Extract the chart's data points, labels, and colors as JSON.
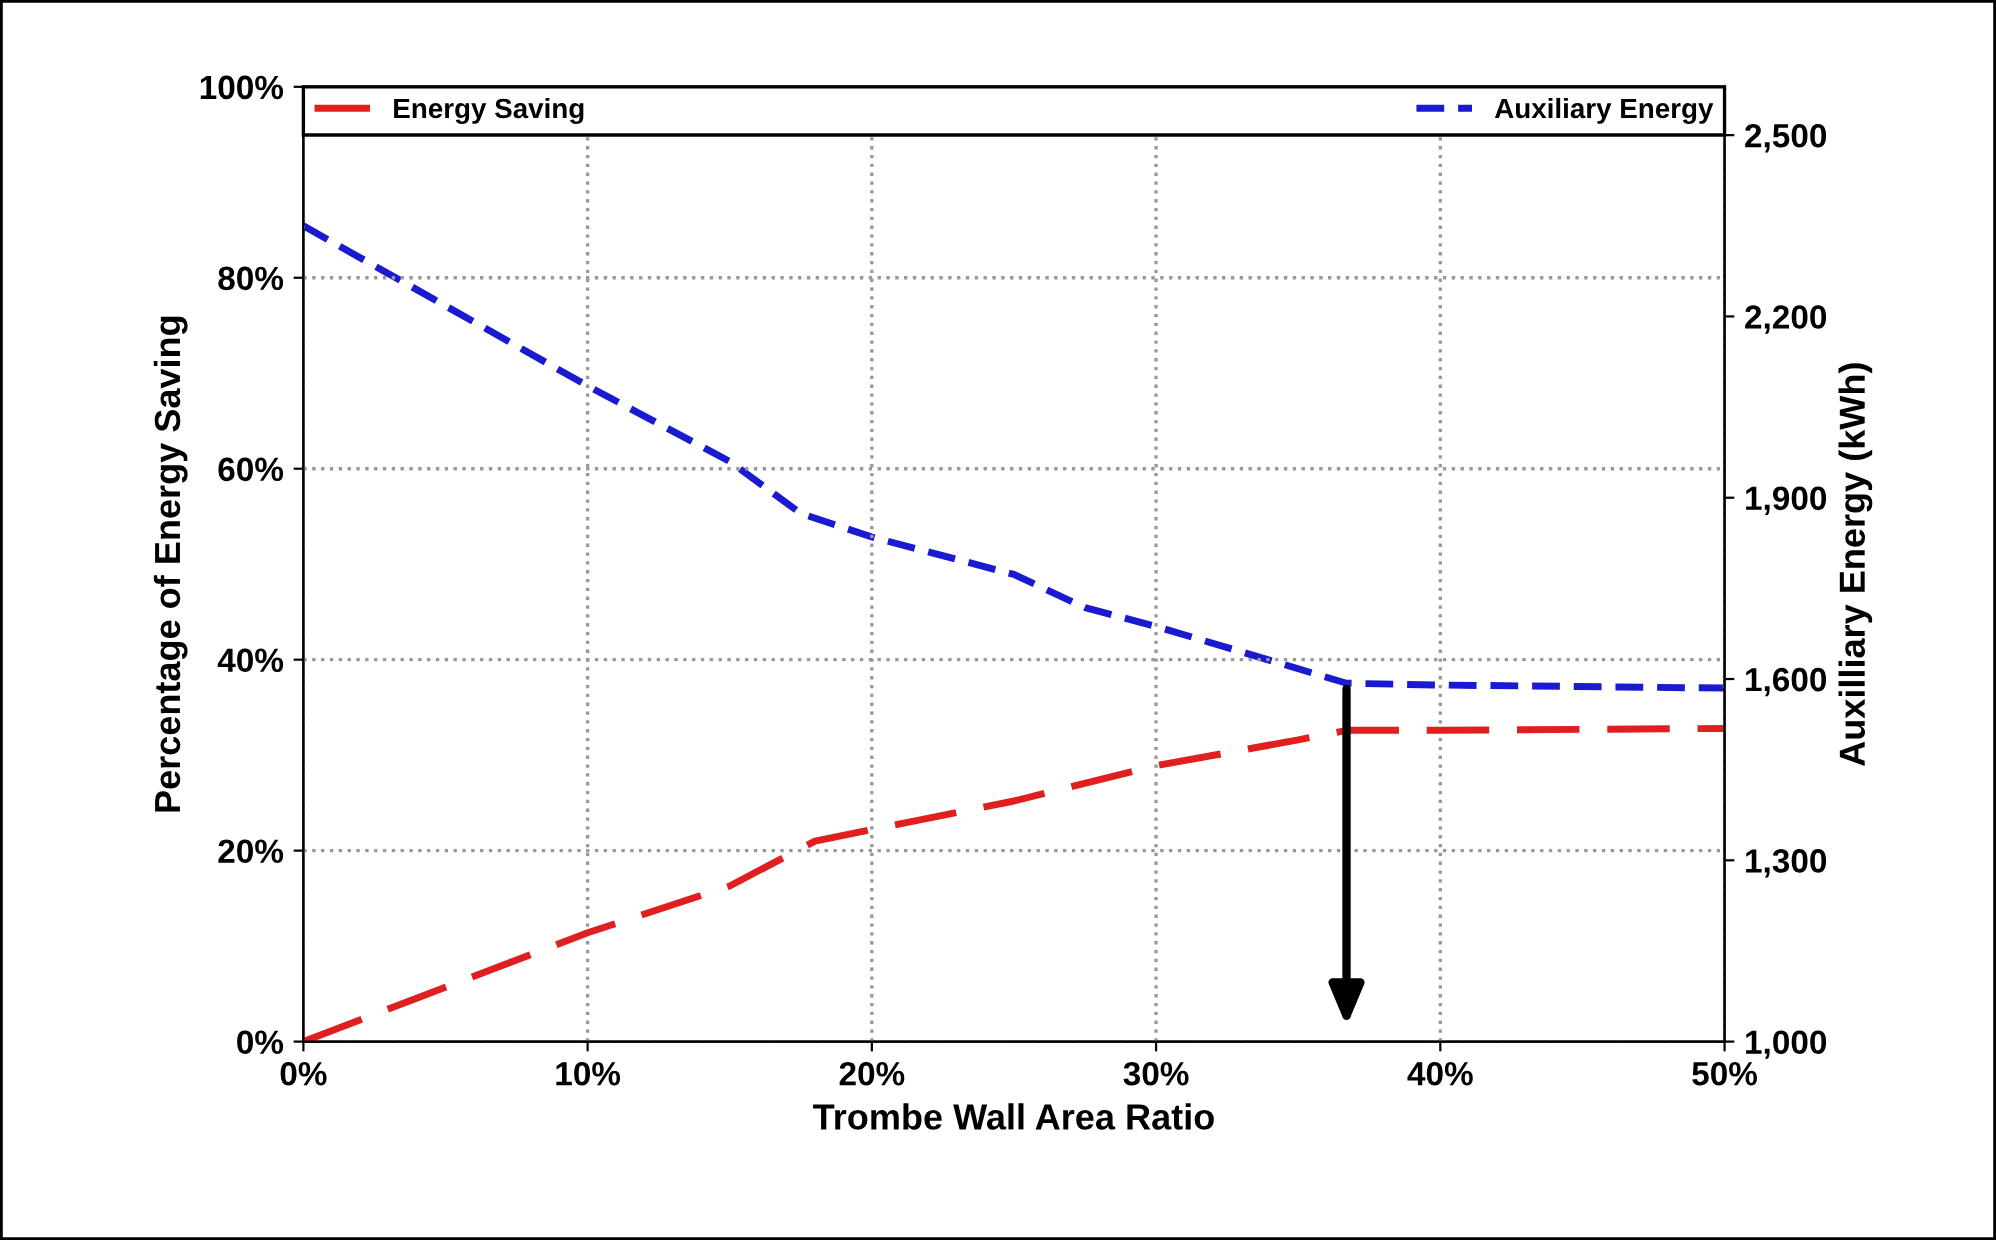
{
  "chart_data": {
    "type": "line",
    "xlabel": "Trombe Wall Area Ratio",
    "ylabel": "Percentage of Energy Saving",
    "y2label": "Auxilliary Energy (kWh)",
    "xlim": [
      0,
      50
    ],
    "xticks": [
      {
        "value": 0,
        "label": "0%"
      },
      {
        "value": 10,
        "label": "10%"
      },
      {
        "value": 20,
        "label": "20%"
      },
      {
        "value": 30,
        "label": "30%"
      },
      {
        "value": 40,
        "label": "40%"
      },
      {
        "value": 50,
        "label": "50%"
      }
    ],
    "ylim": [
      0,
      100
    ],
    "yticks": [
      {
        "value": 0,
        "label": "0%"
      },
      {
        "value": 20,
        "label": "20%"
      },
      {
        "value": 40,
        "label": "40%"
      },
      {
        "value": 60,
        "label": "60%"
      },
      {
        "value": 80,
        "label": "80%"
      },
      {
        "value": 100,
        "label": "100%"
      }
    ],
    "y2lim": [
      1000,
      2580
    ],
    "y2ticks": [
      {
        "value": 1000,
        "label": "1,000"
      },
      {
        "value": 1300,
        "label": "1,300"
      },
      {
        "value": 1600,
        "label": "1,600"
      },
      {
        "value": 1900,
        "label": "1,900"
      },
      {
        "value": 2200,
        "label": "2,200"
      },
      {
        "value": 2500,
        "label": "2,500"
      }
    ],
    "grid": true,
    "legend": "top",
    "line_style": "dashed",
    "marker": "none",
    "series": [
      {
        "name": "Energy Saving",
        "color": "#e02020",
        "x": [
          0,
          10,
          15,
          18,
          20,
          25,
          30,
          35,
          36.7,
          40,
          50
        ],
        "values": [
          0,
          11.4,
          16.3,
          21,
          22.2,
          25.2,
          28.9,
          31.6,
          32.6,
          32.6,
          32.8
        ]
      },
      {
        "name": "Auxiliary Energy",
        "color": "#1a1ad0",
        "axis": "y2",
        "x": [
          0,
          10,
          15,
          17.5,
          20,
          25,
          27.5,
          30,
          35,
          36.7,
          40,
          50
        ],
        "values": [
          2350,
          2085,
          1960,
          1874,
          1835,
          1773,
          1718,
          1687,
          1617,
          1593,
          1590,
          1585
        ]
      }
    ]
  }
}
